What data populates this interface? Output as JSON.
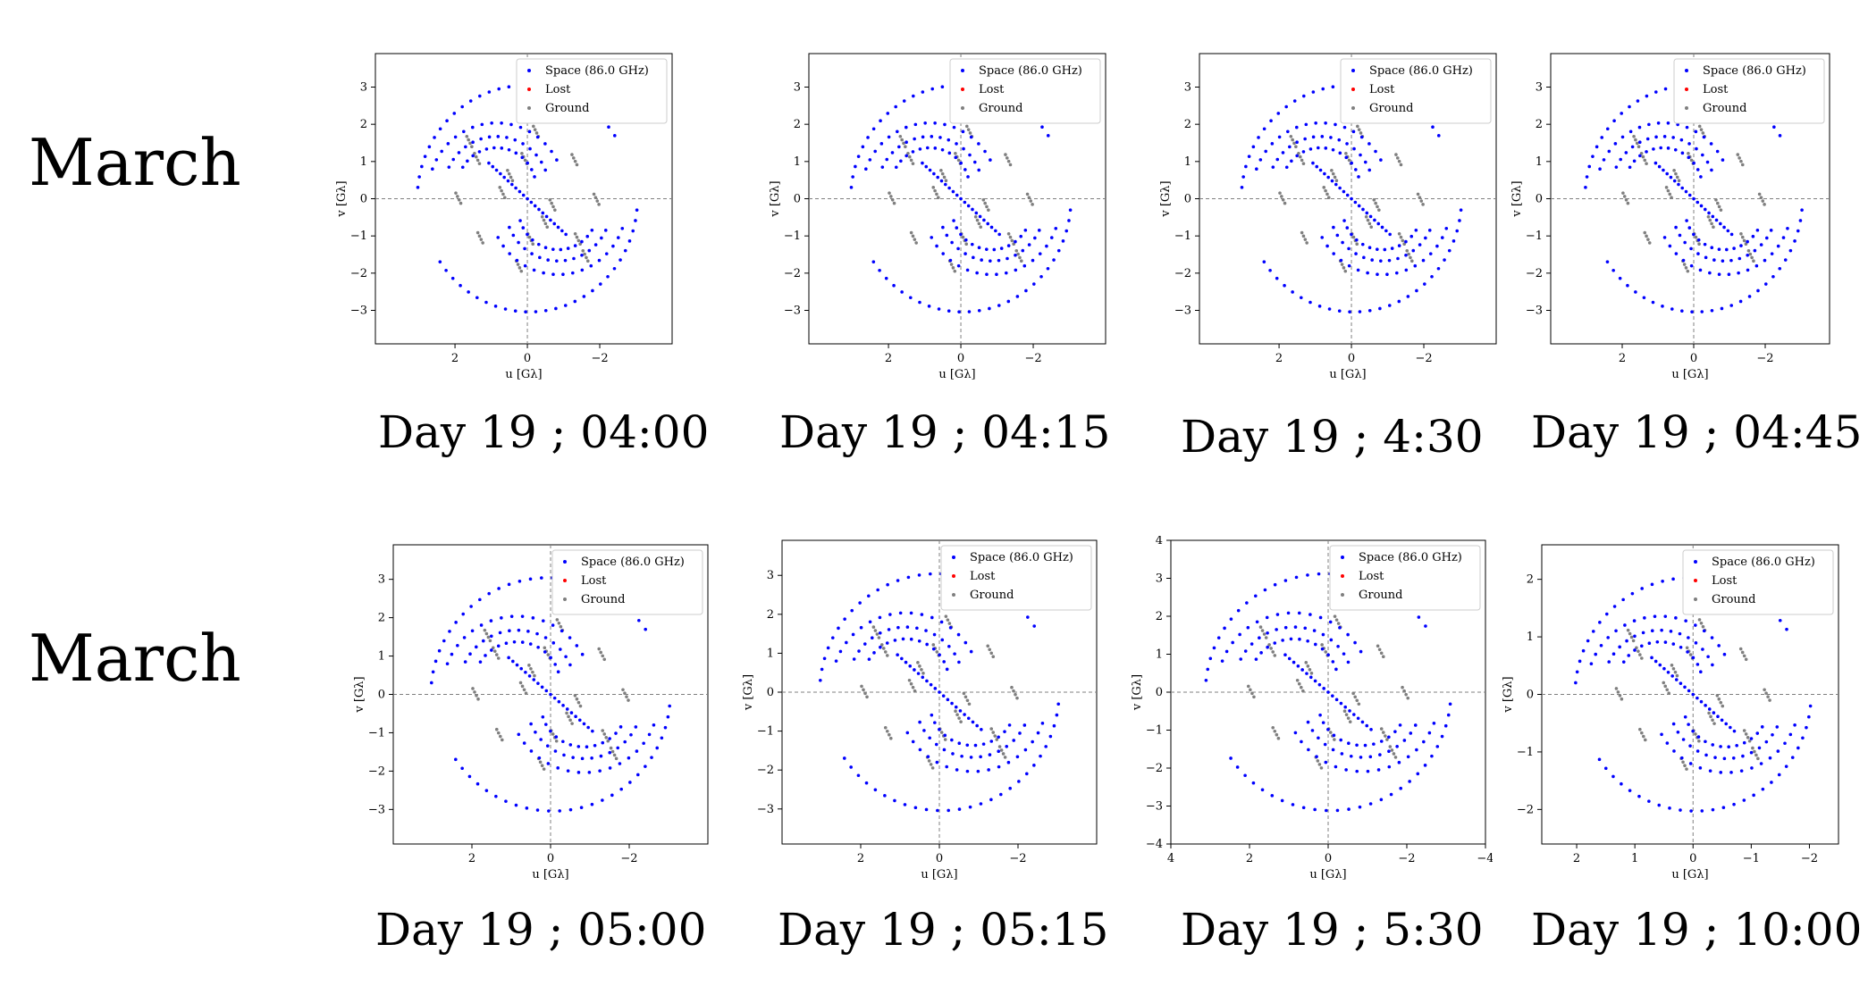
{
  "rows": [
    "March",
    "March"
  ],
  "legend": {
    "space": "Space (86.0 GHz)",
    "lost": "Lost",
    "ground": "Ground"
  },
  "colors": {
    "space": "#0000ff",
    "lost": "#ff0000",
    "ground": "#7f7f7f",
    "axis": "#000000",
    "zero_line": "#808080"
  },
  "chart_data": [
    {
      "type": "scatter",
      "caption": "Day 19 ; 04:00",
      "xlabel": "u [Gλ]",
      "ylabel": "v [Gλ]",
      "xlim": [
        4.2,
        -4.0
      ],
      "ylim": [
        -3.9,
        3.9
      ],
      "xticks": [
        2,
        0,
        -2
      ],
      "yticks": [
        3,
        2,
        1,
        0,
        -1,
        -2,
        -3
      ],
      "x_inverted": true,
      "series": [
        {
          "name": "Space (86.0 GHz)"
        },
        {
          "name": "Lost"
        },
        {
          "name": "Ground"
        }
      ]
    },
    {
      "type": "scatter",
      "caption": "Day 19 ; 04:15",
      "xlabel": "u [Gλ]",
      "ylabel": "v [Gλ]",
      "xlim": [
        4.2,
        -4.0
      ],
      "ylim": [
        -3.9,
        3.9
      ],
      "xticks": [
        2,
        0,
        -2
      ],
      "yticks": [
        3,
        2,
        1,
        0,
        -1,
        -2,
        -3
      ],
      "x_inverted": true,
      "series": [
        {
          "name": "Space (86.0 GHz)"
        },
        {
          "name": "Lost"
        },
        {
          "name": "Ground"
        }
      ]
    },
    {
      "type": "scatter",
      "caption": "Day 19 ; 4:30",
      "xlabel": "u [Gλ]",
      "ylabel": "v [Gλ]",
      "xlim": [
        4.2,
        -4.0
      ],
      "ylim": [
        -3.9,
        3.9
      ],
      "xticks": [
        2,
        0,
        -2
      ],
      "yticks": [
        3,
        2,
        1,
        0,
        -1,
        -2,
        -3
      ],
      "x_inverted": true,
      "series": [
        {
          "name": "Space (86.0 GHz)"
        },
        {
          "name": "Lost"
        },
        {
          "name": "Ground"
        }
      ]
    },
    {
      "type": "scatter",
      "caption": "Day 19 ; 04:45",
      "xlabel": "u [Gλ]",
      "ylabel": "v [Gλ]",
      "xlim": [
        4.0,
        -3.8
      ],
      "ylim": [
        -3.9,
        3.9
      ],
      "xticks": [
        2,
        0,
        -2
      ],
      "yticks": [
        3,
        2,
        1,
        0,
        -1,
        -2,
        -3
      ],
      "x_inverted": true,
      "series": [
        {
          "name": "Space (86.0 GHz)"
        },
        {
          "name": "Lost"
        },
        {
          "name": "Ground"
        }
      ]
    },
    {
      "type": "scatter",
      "caption": "Day 19 ; 05:00",
      "xlabel": "u [Gλ]",
      "ylabel": "v [Gλ]",
      "xlim": [
        4.0,
        -4.0
      ],
      "ylim": [
        -3.9,
        3.9
      ],
      "xticks": [
        2,
        0,
        -2
      ],
      "yticks": [
        3,
        2,
        1,
        0,
        -1,
        -2,
        -3
      ],
      "x_inverted": true,
      "series": [
        {
          "name": "Space (86.0 GHz)"
        },
        {
          "name": "Lost"
        },
        {
          "name": "Ground"
        }
      ]
    },
    {
      "type": "scatter",
      "caption": "Day 19 ; 05:15",
      "xlabel": "u [Gλ]",
      "ylabel": "v [Gλ]",
      "xlim": [
        4.0,
        -4.0
      ],
      "ylim": [
        -3.9,
        3.9
      ],
      "xticks": [
        2,
        0,
        -2
      ],
      "yticks": [
        3,
        2,
        1,
        0,
        -1,
        -2,
        -3
      ],
      "x_inverted": true,
      "series": [
        {
          "name": "Space (86.0 GHz)"
        },
        {
          "name": "Lost"
        },
        {
          "name": "Ground"
        }
      ]
    },
    {
      "type": "scatter",
      "caption": "Day 19 ; 5:30",
      "xlabel": "u [Gλ]",
      "ylabel": "v [Gλ]",
      "xlim": [
        4.0,
        -4.0
      ],
      "ylim": [
        -4.0,
        4.0
      ],
      "xticks": [
        4,
        2,
        0,
        -2,
        -4
      ],
      "yticks": [
        4,
        3,
        2,
        1,
        0,
        -1,
        -2,
        -3,
        -4
      ],
      "x_inverted": true,
      "series": [
        {
          "name": "Space (86.0 GHz)"
        },
        {
          "name": "Lost"
        },
        {
          "name": "Ground"
        }
      ]
    },
    {
      "type": "scatter",
      "caption": "Day 19 ; 10:00",
      "xlabel": "u [Gλ]",
      "ylabel": "v [Gλ]",
      "xlim": [
        2.6,
        -2.5
      ],
      "ylim": [
        -2.6,
        2.6
      ],
      "xticks": [
        2,
        1,
        0,
        -1,
        -2
      ],
      "yticks": [
        2,
        1,
        0,
        -1,
        -2
      ],
      "x_inverted": true,
      "series": [
        {
          "name": "Space (86.0 GHz)"
        },
        {
          "name": "Lost"
        },
        {
          "name": "Ground"
        }
      ]
    }
  ]
}
